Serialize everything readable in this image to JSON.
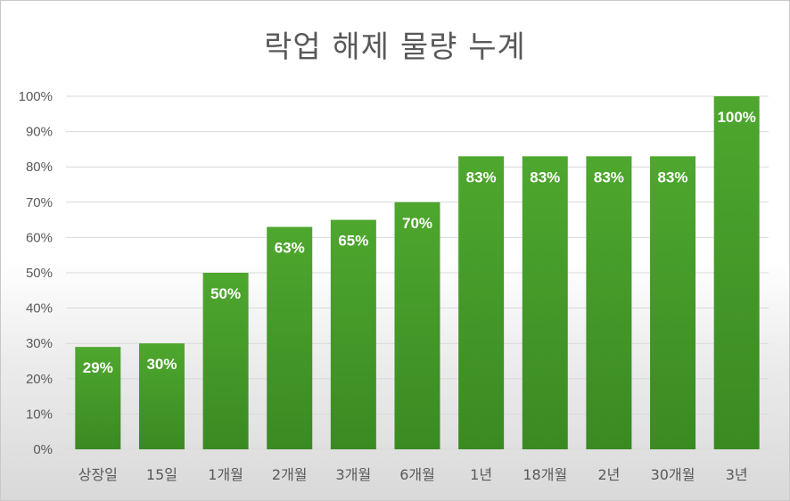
{
  "chart_data": {
    "type": "bar",
    "title": "락업 해제 물량 누계",
    "xlabel": "",
    "ylabel": "",
    "categories": [
      "상장일",
      "15일",
      "1개월",
      "2개월",
      "3개월",
      "6개월",
      "1년",
      "18개월",
      "2년",
      "30개월",
      "3년"
    ],
    "values": [
      29,
      30,
      50,
      63,
      65,
      70,
      83,
      83,
      83,
      83,
      100
    ],
    "data_labels": [
      "29%",
      "30%",
      "50%",
      "63%",
      "65%",
      "70%",
      "83%",
      "83%",
      "83%",
      "83%",
      "100%"
    ],
    "ylim": [
      0,
      100
    ],
    "y_ticks": [
      "0%",
      "10%",
      "20%",
      "30%",
      "40%",
      "50%",
      "60%",
      "70%",
      "80%",
      "90%",
      "100%"
    ],
    "grid": true,
    "legend": "none",
    "colors": {
      "bar_top": "#4ea72e",
      "bar_bottom": "#3a8a22",
      "grid": "#d9d9d9",
      "text": "#595959"
    }
  }
}
